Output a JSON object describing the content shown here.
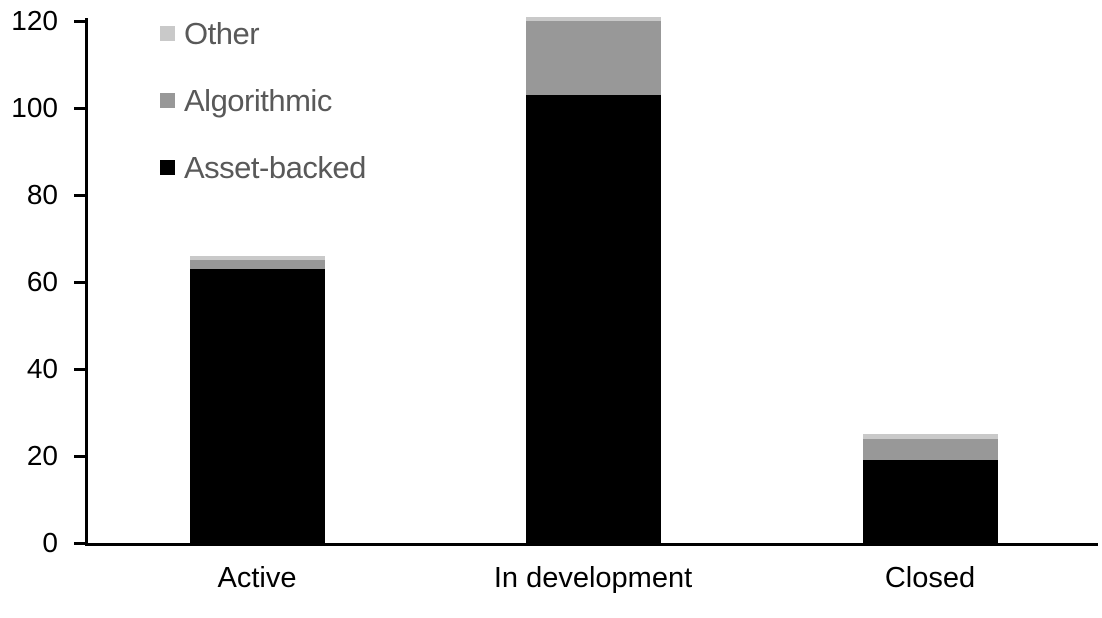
{
  "chart_data": {
    "type": "bar",
    "stacked": true,
    "title": "",
    "xlabel": "",
    "ylabel": "",
    "grid": false,
    "categories": [
      "Active",
      "In development",
      "Closed"
    ],
    "series": [
      {
        "name": "Asset-backed",
        "color": "#000000",
        "values": [
          63,
          103,
          19
        ]
      },
      {
        "name": "Algorithmic",
        "color": "#989898",
        "values": [
          2,
          17,
          5
        ]
      },
      {
        "name": "Other",
        "color": "#c9c9c9",
        "values": [
          1,
          1,
          1
        ]
      }
    ],
    "totals_estimated": [
      66,
      121,
      25
    ],
    "y_axis": {
      "min": 0,
      "max": 120,
      "tick_step": 20,
      "ticks": [
        0,
        20,
        40,
        60,
        80,
        100,
        120
      ]
    },
    "legend": {
      "position": "top-left",
      "order": [
        "Other",
        "Algorithmic",
        "Asset-backed"
      ]
    }
  },
  "colors": {
    "background": "#ffffff",
    "axis": "#000000",
    "tick_label_text": "#000000",
    "category_label_text": "#000000",
    "legend_text": "#595959"
  }
}
